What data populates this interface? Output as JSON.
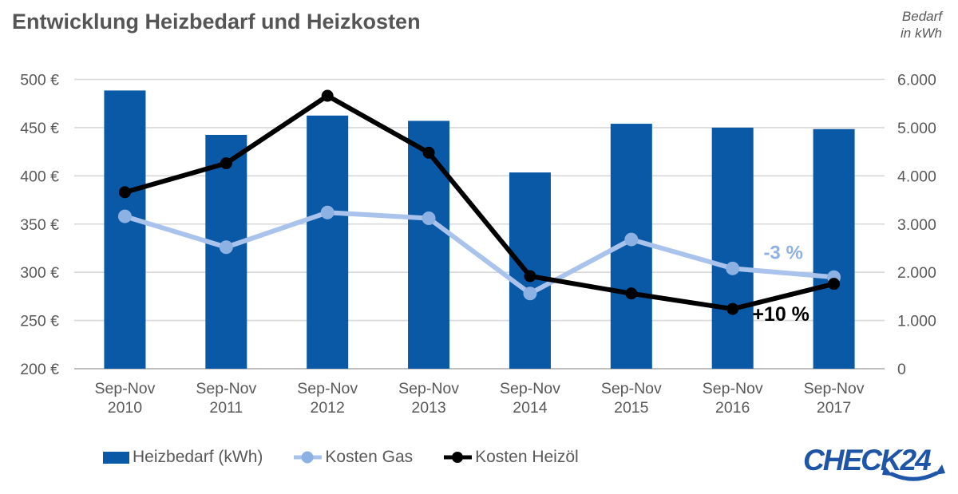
{
  "header": {
    "title": "Entwicklung Heizbedarf und Heizkosten",
    "unit_line1": "Bedarf",
    "unit_line2": "in kWh"
  },
  "colors": {
    "bar_blue": "#0959a6",
    "gas_line": "#a9c3ec",
    "gas_dot": "#8db1e2",
    "oil_black": "#000000",
    "text_gray": "#595959",
    "grid_gray": "#d8d8d8",
    "axis_gray": "#a9a9a9",
    "logo_blue": "#1f55a6"
  },
  "chart_data": {
    "type": "bar+line combo",
    "title": "Entwicklung Heizbedarf und Heizkosten",
    "grid": true,
    "legend_position": "bottom",
    "categories": [
      {
        "period": "Sep-Nov",
        "year": "2010"
      },
      {
        "period": "Sep-Nov",
        "year": "2011"
      },
      {
        "period": "Sep-Nov",
        "year": "2012"
      },
      {
        "period": "Sep-Nov",
        "year": "2013"
      },
      {
        "period": "Sep-Nov",
        "year": "2014"
      },
      {
        "period": "Sep-Nov",
        "year": "2015"
      },
      {
        "period": "Sep-Nov",
        "year": "2016"
      },
      {
        "period": "Sep-Nov",
        "year": "2017"
      }
    ],
    "left_axis": {
      "unit": "€",
      "min": 200,
      "max": 500,
      "ticks": [
        "500 €",
        "450 €",
        "400 €",
        "350 €",
        "300 €",
        "250 €",
        "200 €"
      ]
    },
    "right_axis": {
      "unit": "kWh",
      "label": "Bedarf in kWh",
      "min": 0,
      "max": 6000,
      "ticks": [
        "6.000",
        "5.000",
        "4.000",
        "3.000",
        "2.000",
        "1.000",
        "0"
      ]
    },
    "series": [
      {
        "name": "Heizbedarf (kWh)",
        "type": "bar",
        "axis": "right",
        "color": "#0959a6",
        "values": [
          5770,
          4850,
          5250,
          5140,
          4070,
          5080,
          5000,
          4970
        ]
      },
      {
        "name": "Kosten Gas",
        "type": "line",
        "axis": "left",
        "color": "#a9c3ec",
        "dot_color": "#8db1e2",
        "values": [
          358,
          326,
          362,
          356,
          278,
          334,
          304,
          295
        ]
      },
      {
        "name": "Kosten Heizöl",
        "type": "line",
        "axis": "left",
        "color": "#000000",
        "dot_color": "#000000",
        "values": [
          383,
          413,
          483,
          424,
          296,
          278,
          262,
          288
        ]
      }
    ],
    "annotations": [
      {
        "text": "-3 %",
        "series": "Kosten Gas",
        "color": "#8db1e2"
      },
      {
        "text": "+10 %",
        "series": "Kosten Heizöl",
        "color": "#000000"
      }
    ]
  },
  "legend": {
    "items": [
      {
        "label": "Heizbedarf (kWh)"
      },
      {
        "label": "Kosten Gas"
      },
      {
        "label": "Kosten Heizöl"
      }
    ]
  },
  "logo": {
    "text": "CHECK24"
  }
}
